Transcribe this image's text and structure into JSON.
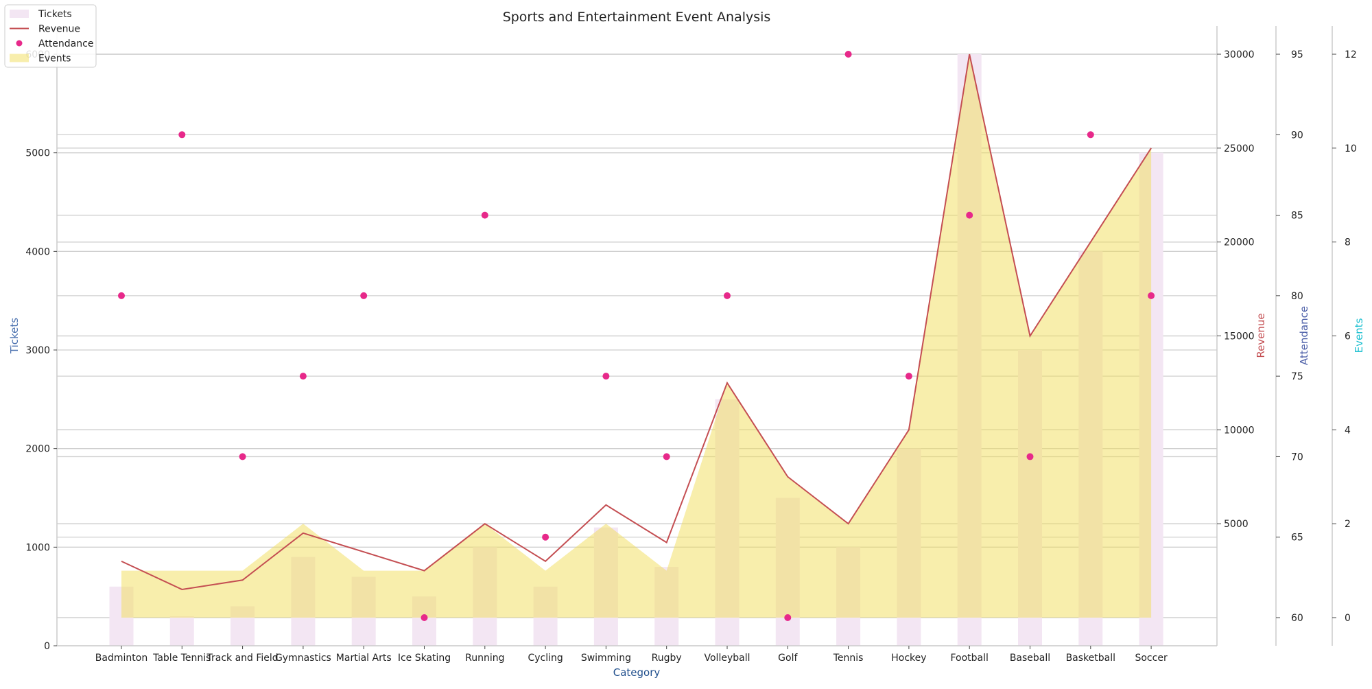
{
  "chart_data": {
    "type": "bar",
    "title": "Sports and Entertainment Event Analysis",
    "xlabel": "Category",
    "categories": [
      "Badminton",
      "Table Tennis",
      "Track and Field",
      "Gymnastics",
      "Martial Arts",
      "Ice Skating",
      "Running",
      "Cycling",
      "Swimming",
      "Rugby",
      "Volleyball",
      "Golf",
      "Tennis",
      "Hockey",
      "Football",
      "Baseball",
      "Basketball",
      "Soccer"
    ],
    "series": [
      {
        "name": "Tickets",
        "kind": "bar",
        "axis": "Tickets",
        "color": "#f3e6f3",
        "values": [
          600,
          300,
          400,
          900,
          700,
          500,
          1000,
          600,
          1200,
          800,
          2500,
          1500,
          1000,
          2000,
          6000,
          3000,
          4000,
          5000
        ]
      },
      {
        "name": "Revenue",
        "kind": "line",
        "axis": "Revenue",
        "color": "#c44e52",
        "values": [
          3000,
          1500,
          2000,
          4500,
          3500,
          2500,
          5000,
          3000,
          6000,
          4000,
          12500,
          7500,
          5000,
          10000,
          30000,
          15000,
          20000,
          25000
        ]
      },
      {
        "name": "Attendance",
        "kind": "scatter",
        "axis": "Attendance",
        "color": "#e7298a",
        "values": [
          80,
          90,
          70,
          75,
          80,
          60,
          85,
          65,
          75,
          70,
          80,
          60,
          95,
          75,
          85,
          70,
          90,
          80
        ]
      },
      {
        "name": "Events",
        "kind": "area",
        "axis": "Events",
        "color": "#f2dd5a",
        "values": [
          1,
          1,
          1,
          2,
          1,
          1,
          2,
          1,
          2,
          1,
          5,
          3,
          2,
          4,
          12,
          6,
          8,
          10
        ]
      }
    ],
    "axes": {
      "Tickets": {
        "label": "Tickets",
        "label_color": "#4c72b0",
        "ylim": [
          0,
          6000
        ],
        "ticks": [
          {
            "v": 0,
            "t": "0"
          },
          {
            "v": 1000,
            "t": "1000"
          },
          {
            "v": 2000,
            "t": "2000"
          },
          {
            "v": 3000,
            "t": "3000"
          },
          {
            "v": 4000,
            "t": "4000"
          },
          {
            "v": 5000,
            "t": "5000"
          },
          {
            "v": 6000,
            "t": "6000"
          }
        ]
      },
      "Revenue": {
        "label": "Revenue",
        "label_color": "#c44e52",
        "ylim": [
          0,
          30000
        ],
        "ticks": [
          {
            "v": 5000,
            "t": "5000"
          },
          {
            "v": 10000,
            "t": "10000"
          },
          {
            "v": 15000,
            "t": "15000"
          },
          {
            "v": 20000,
            "t": "20000"
          },
          {
            "v": 25000,
            "t": "25000"
          },
          {
            "v": 30000,
            "t": "30000"
          }
        ]
      },
      "Attendance": {
        "label": "Attendance",
        "label_color": "#4c5fa8",
        "ylim": [
          60,
          95
        ],
        "ticks": [
          {
            "v": 60,
            "t": "60"
          },
          {
            "v": 65,
            "t": "65"
          },
          {
            "v": 70,
            "t": "70"
          },
          {
            "v": 75,
            "t": "75"
          },
          {
            "v": 80,
            "t": "80"
          },
          {
            "v": 85,
            "t": "85"
          },
          {
            "v": 90,
            "t": "90"
          },
          {
            "v": 95,
            "t": "95"
          }
        ]
      },
      "Events": {
        "label": "Events",
        "label_color": "#17becf",
        "ylim": [
          0,
          12
        ],
        "ticks": [
          {
            "v": 0,
            "t": "0"
          },
          {
            "v": 2,
            "t": "2"
          },
          {
            "v": 4,
            "t": "4"
          },
          {
            "v": 6,
            "t": "6"
          },
          {
            "v": 8,
            "t": "8"
          },
          {
            "v": 10,
            "t": "10"
          },
          {
            "v": 12,
            "t": "12"
          }
        ]
      }
    },
    "legend": {
      "placement": "top-left"
    },
    "grid": true
  }
}
